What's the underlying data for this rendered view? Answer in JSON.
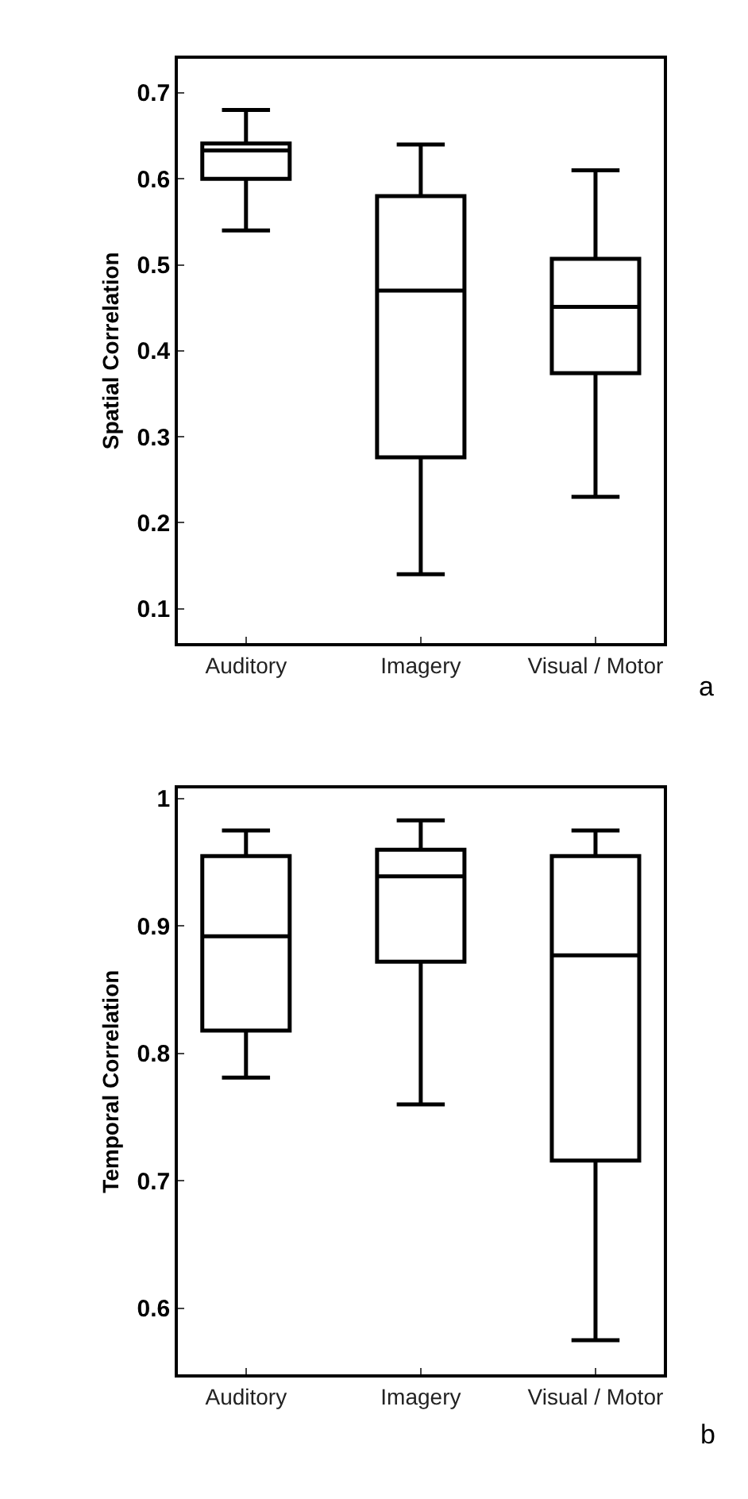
{
  "chart_data": [
    {
      "type": "box",
      "categories": [
        "Auditory",
        "Imagery",
        "Visual / Motor"
      ],
      "ylabel": "Spatial Correlation",
      "ylim": [
        0.06,
        0.74
      ],
      "yticks": [
        0.1,
        0.2,
        0.3,
        0.4,
        0.5,
        0.6,
        0.7
      ],
      "annotations": [
        "a"
      ],
      "series": [
        {
          "color": "#000000",
          "boxes": [
            {
              "low": 0.54,
              "q1": 0.6,
              "median": 0.633,
              "q3": 0.641,
              "high": 0.68
            },
            {
              "low": 0.14,
              "q1": 0.276,
              "median": 0.47,
              "q3": 0.58,
              "high": 0.64
            },
            {
              "low": 0.23,
              "q1": 0.374,
              "median": 0.451,
              "q3": 0.507,
              "high": 0.61
            }
          ]
        }
      ]
    },
    {
      "type": "box",
      "categories": [
        "Auditory",
        "Imagery",
        "Visual / Motor"
      ],
      "ylabel": "Temporal Correlation",
      "ylim": [
        0.548,
        1.008
      ],
      "yticks": [
        0.6,
        0.7,
        0.8,
        0.9,
        1
      ],
      "annotations": [
        "b"
      ],
      "series": [
        {
          "color": "#000000",
          "boxes": [
            {
              "low": 0.781,
              "q1": 0.818,
              "median": 0.892,
              "q3": 0.955,
              "high": 0.975
            },
            {
              "low": 0.76,
              "q1": 0.872,
              "median": 0.939,
              "q3": 0.96,
              "high": 0.983
            },
            {
              "low": 0.575,
              "q1": 0.716,
              "median": 0.877,
              "q3": 0.955,
              "high": 0.975
            }
          ]
        }
      ]
    }
  ]
}
